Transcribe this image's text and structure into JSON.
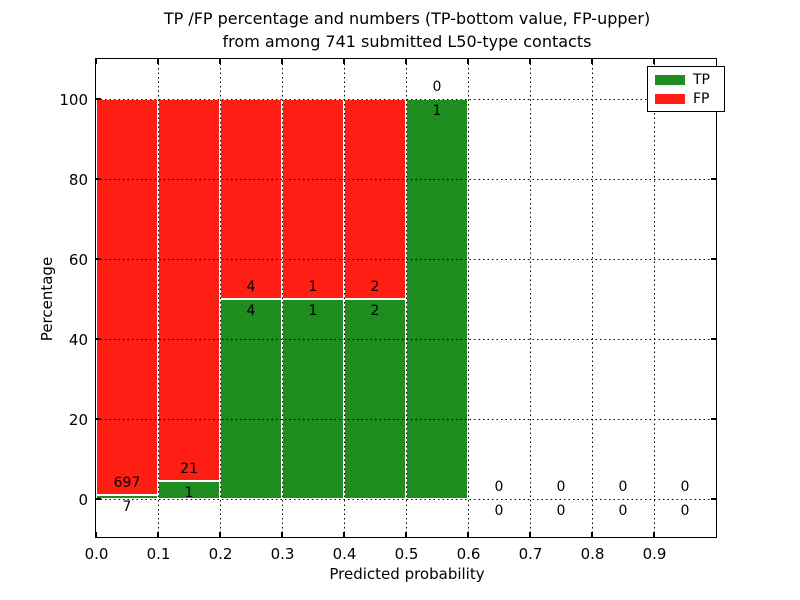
{
  "chart_data": {
    "type": "bar",
    "stacked": true,
    "title_line1": "TP /FP percentage and numbers (TP-bottom value, FP-upper)",
    "title_line2": "from among 741 submitted L50-type contacts",
    "title": "TP /FP percentage and numbers (TP-bottom value, FP-upper) from among 741 submitted L50-type contacts",
    "xlabel": "Predicted probability",
    "ylabel": "Percentage",
    "xlim": [
      0.0,
      1.0
    ],
    "ylim": [
      -10,
      110
    ],
    "grid": "dotted",
    "x_ticks": [
      0.0,
      0.1,
      0.2,
      0.3,
      0.4,
      0.5,
      0.6,
      0.7,
      0.8,
      0.9
    ],
    "x_tick_labels": [
      "0.0",
      "0.1",
      "0.2",
      "0.3",
      "0.4",
      "0.5",
      "0.6",
      "0.7",
      "0.8",
      "0.9"
    ],
    "y_ticks": [
      0,
      20,
      40,
      60,
      80,
      100
    ],
    "y_tick_labels": [
      "0",
      "20",
      "40",
      "60",
      "80",
      "100"
    ],
    "total_contacts": 741,
    "legend_position": "upper right",
    "series": [
      {
        "name": "TP",
        "color": "#1e8c1e"
      },
      {
        "name": "FP",
        "color": "#ff1e14"
      }
    ],
    "bins": [
      {
        "range": [
          0.0,
          0.1
        ],
        "tp": 7,
        "fp": 697,
        "tp_pct": 0.99,
        "fp_pct": 99.01
      },
      {
        "range": [
          0.1,
          0.2
        ],
        "tp": 1,
        "fp": 21,
        "tp_pct": 4.55,
        "fp_pct": 95.45
      },
      {
        "range": [
          0.2,
          0.3
        ],
        "tp": 4,
        "fp": 4,
        "tp_pct": 50.0,
        "fp_pct": 50.0
      },
      {
        "range": [
          0.3,
          0.4
        ],
        "tp": 1,
        "fp": 1,
        "tp_pct": 50.0,
        "fp_pct": 50.0
      },
      {
        "range": [
          0.4,
          0.5
        ],
        "tp": 2,
        "fp": 2,
        "tp_pct": 50.0,
        "fp_pct": 50.0
      },
      {
        "range": [
          0.5,
          0.6
        ],
        "tp": 1,
        "fp": 0,
        "tp_pct": 100.0,
        "fp_pct": 0.0
      },
      {
        "range": [
          0.6,
          0.7
        ],
        "tp": 0,
        "fp": 0,
        "tp_pct": 0.0,
        "fp_pct": 0.0
      },
      {
        "range": [
          0.7,
          0.8
        ],
        "tp": 0,
        "fp": 0,
        "tp_pct": 0.0,
        "fp_pct": 0.0
      },
      {
        "range": [
          0.8,
          0.9
        ],
        "tp": 0,
        "fp": 0,
        "tp_pct": 0.0,
        "fp_pct": 0.0
      },
      {
        "range": [
          0.9,
          1.0
        ],
        "tp": 0,
        "fp": 0,
        "tp_pct": 0.0,
        "fp_pct": 0.0
      }
    ]
  }
}
